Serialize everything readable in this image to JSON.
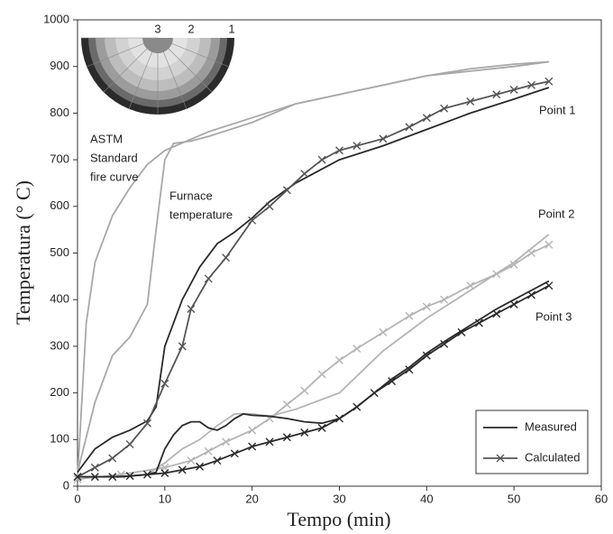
{
  "chart_data": {
    "type": "line",
    "x_label": "Tempo (min)",
    "y_label": "Temperatura (° C)",
    "xlim": [
      0,
      60
    ],
    "xticks": [
      0,
      10,
      20,
      30,
      40,
      50,
      60
    ],
    "ylim": [
      0,
      1000
    ],
    "yticks": [
      0,
      100,
      200,
      300,
      400,
      500,
      600,
      700,
      800,
      900,
      1000
    ],
    "grid": false,
    "series": [
      {
        "color": "#a8a8a8",
        "marker": "none",
        "x": [
          0,
          1,
          2,
          4,
          6,
          8,
          10,
          15,
          20,
          25,
          30,
          35,
          40,
          45,
          50,
          54
        ],
        "values": [
          20,
          350,
          480,
          580,
          640,
          690,
          720,
          760,
          790,
          820,
          840,
          860,
          880,
          890,
          900,
          910
        ]
      },
      {
        "color": "#a8a8a8",
        "marker": "none",
        "x": [
          0,
          2,
          4,
          6,
          8,
          9,
          10,
          11,
          13,
          15,
          20,
          25,
          30,
          35,
          40,
          45,
          50,
          54
        ],
        "values": [
          30,
          180,
          280,
          320,
          390,
          550,
          700,
          735,
          740,
          750,
          780,
          820,
          840,
          860,
          880,
          895,
          905,
          910
        ]
      },
      {
        "color": "#2a2a2a",
        "marker": "none",
        "x": [
          0,
          2,
          4,
          6,
          8,
          9,
          10,
          12,
          14,
          16,
          18,
          20,
          22,
          25,
          30,
          35,
          40,
          45,
          50,
          54
        ],
        "values": [
          30,
          80,
          105,
          120,
          140,
          170,
          300,
          400,
          470,
          520,
          545,
          575,
          610,
          650,
          700,
          730,
          765,
          800,
          830,
          855
        ]
      },
      {
        "color": "#555555",
        "marker": "x",
        "x": [
          0,
          2,
          4,
          6,
          8,
          10,
          12,
          13,
          15,
          17,
          20,
          22,
          24,
          26,
          28,
          30,
          32,
          35,
          38,
          40,
          42,
          45,
          48,
          50,
          52,
          54
        ],
        "values": [
          20,
          40,
          60,
          90,
          135,
          220,
          300,
          380,
          445,
          490,
          570,
          600,
          635,
          670,
          700,
          720,
          730,
          745,
          770,
          790,
          810,
          825,
          840,
          850,
          860,
          868
        ]
      },
      {
        "color": "#b4b4b4",
        "marker": "none",
        "x": [
          0,
          5,
          8,
          10,
          12,
          14,
          16,
          18,
          20,
          22,
          25,
          30,
          35,
          40,
          45,
          50,
          54
        ],
        "values": [
          20,
          20,
          25,
          50,
          80,
          100,
          130,
          155,
          155,
          150,
          165,
          200,
          290,
          360,
          420,
          480,
          540
        ]
      },
      {
        "color": "#b4b4b4",
        "marker": "x",
        "x": [
          0,
          5,
          10,
          13,
          15,
          17,
          20,
          22,
          24,
          26,
          28,
          30,
          32,
          35,
          38,
          40,
          42,
          45,
          48,
          50,
          52,
          54
        ],
        "values": [
          15,
          25,
          40,
          55,
          75,
          95,
          120,
          145,
          175,
          205,
          240,
          270,
          295,
          330,
          365,
          385,
          400,
          430,
          455,
          475,
          500,
          518
        ]
      },
      {
        "color": "#2a2a2a",
        "marker": "none",
        "x": [
          0,
          5,
          8,
          9,
          10,
          11,
          12,
          13,
          14,
          15,
          16,
          17,
          18,
          19,
          20,
          22,
          24,
          26,
          28,
          30,
          32,
          34,
          36,
          38,
          40,
          42,
          45,
          48,
          50,
          52,
          54
        ],
        "values": [
          20,
          20,
          25,
          30,
          80,
          110,
          130,
          138,
          138,
          125,
          120,
          130,
          145,
          155,
          152,
          150,
          145,
          138,
          135,
          145,
          170,
          200,
          230,
          255,
          285,
          310,
          345,
          380,
          400,
          420,
          440
        ]
      },
      {
        "color": "#2a2a2a",
        "marker": "x",
        "x": [
          0,
          2,
          4,
          6,
          8,
          10,
          12,
          14,
          16,
          18,
          20,
          22,
          24,
          26,
          28,
          30,
          32,
          34,
          36,
          38,
          40,
          42,
          44,
          46,
          48,
          50,
          52,
          54
        ],
        "values": [
          20,
          20,
          20,
          22,
          25,
          28,
          35,
          42,
          55,
          70,
          85,
          95,
          105,
          115,
          125,
          145,
          170,
          200,
          225,
          250,
          280,
          305,
          330,
          350,
          370,
          390,
          410,
          430
        ]
      }
    ],
    "legend": {
      "position": "lower right",
      "entries": [
        {
          "label": "Measured",
          "color": "#2a2a2a",
          "marker": "none"
        },
        {
          "label": "Calculated",
          "color": "#555555",
          "marker": "x"
        }
      ]
    },
    "annotations": [
      {
        "lines": [
          "ASTM",
          "Standard",
          "fire curve"
        ]
      },
      {
        "lines": [
          "Furnace",
          "temperature"
        ]
      },
      {
        "lines": [
          "Point 1"
        ]
      },
      {
        "lines": [
          "Point 2"
        ]
      },
      {
        "lines": [
          "Point 3"
        ]
      }
    ],
    "inset": {
      "labels": [
        "3",
        "2",
        "1"
      ]
    }
  }
}
